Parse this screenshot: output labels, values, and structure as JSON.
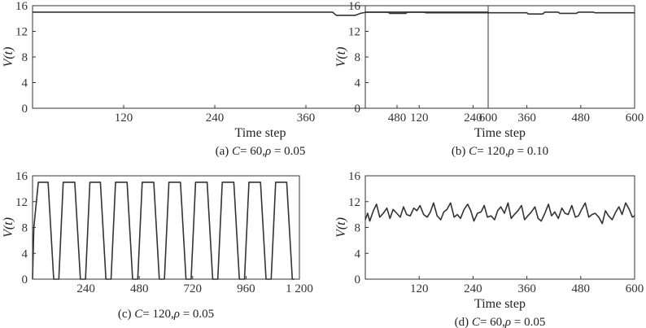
{
  "chart_data": [
    {
      "type": "line",
      "panel": "a",
      "xlabel": "Time step",
      "ylabel": "V(t)",
      "caption": {
        "prefix": "(a) ",
        "c_sym": "C",
        "c_val": "= 60,",
        "rho_sym": "ρ",
        "rho_val": " = 0.05"
      },
      "xlim": [
        0,
        600
      ],
      "ylim": [
        0,
        16
      ],
      "xticks": [
        {
          "v": 120,
          "label": "120"
        },
        {
          "v": 240,
          "label": "240"
        },
        {
          "v": 360,
          "label": "360"
        },
        {
          "v": 480,
          "label": "480"
        },
        {
          "v": 600,
          "label": "600"
        }
      ],
      "yticks": [
        {
          "v": 0,
          "label": "0"
        },
        {
          "v": 4,
          "label": "4"
        },
        {
          "v": 8,
          "label": "8"
        },
        {
          "v": 12,
          "label": "12"
        },
        {
          "v": 16,
          "label": "16"
        }
      ],
      "series": [
        {
          "x": [
            0,
            395,
            400,
            425,
            432,
            440,
            450,
            600
          ],
          "y": [
            15,
            15,
            14.5,
            14.5,
            14.8,
            15,
            15,
            15
          ]
        }
      ]
    },
    {
      "type": "line",
      "panel": "b",
      "xlabel": "Time step",
      "ylabel": "V(t)",
      "caption": {
        "prefix": "(b) ",
        "c_sym": "C",
        "c_val": "= 120,",
        "rho_sym": "ρ",
        "rho_val": " = 0.10"
      },
      "xlim": [
        0,
        600
      ],
      "ylim": [
        0,
        16
      ],
      "xticks": [
        {
          "v": 120,
          "label": "120"
        },
        {
          "v": 240,
          "label": "240"
        },
        {
          "v": 360,
          "label": "360"
        },
        {
          "v": 480,
          "label": "480"
        },
        {
          "v": 600,
          "label": "600"
        }
      ],
      "yticks": [
        {
          "v": 0,
          "label": "0"
        },
        {
          "v": 4,
          "label": "4"
        },
        {
          "v": 8,
          "label": "8"
        },
        {
          "v": 12,
          "label": "12"
        },
        {
          "v": 16,
          "label": "16"
        }
      ],
      "series": [
        {
          "x": [
            0,
            50,
            55,
            90,
            95,
            130,
            135,
            360,
            363,
            395,
            400,
            430,
            433,
            470,
            475,
            508,
            512,
            600
          ],
          "y": [
            15,
            15,
            14.8,
            14.8,
            15,
            15,
            14.9,
            14.9,
            14.7,
            14.7,
            15,
            15,
            14.8,
            14.8,
            15,
            15,
            14.9,
            14.9
          ]
        }
      ]
    },
    {
      "type": "line",
      "panel": "c",
      "xlabel": "",
      "ylabel": "V(t)",
      "caption": {
        "prefix": "(c) ",
        "c_sym": "C",
        "c_val": "= 120,",
        "rho_sym": "ρ",
        "rho_val": " = 0.05"
      },
      "xlim": [
        0,
        1200
      ],
      "ylim": [
        0,
        16
      ],
      "xticks": [
        {
          "v": 240,
          "label": "240"
        },
        {
          "v": 480,
          "label": "480"
        },
        {
          "v": 720,
          "label": "720"
        },
        {
          "v": 960,
          "label": "960"
        },
        {
          "v": 1200,
          "label": "1 200"
        }
      ],
      "yticks": [
        {
          "v": 0,
          "label": "0"
        },
        {
          "v": 4,
          "label": "4"
        },
        {
          "v": 8,
          "label": "8"
        },
        {
          "v": 12,
          "label": "12"
        },
        {
          "v": 16,
          "label": "16"
        }
      ],
      "series": [
        {
          "x": [
            0,
            6,
            26,
            70,
            95,
            118,
            138,
            190,
            215,
            238,
            258,
            305,
            330,
            353,
            373,
            425,
            450,
            473,
            493,
            545,
            570,
            593,
            613,
            665,
            690,
            713,
            733,
            785,
            810,
            833,
            853,
            905,
            930,
            953,
            973,
            1025,
            1050,
            1073,
            1093,
            1143,
            1168,
            1178
          ],
          "y": [
            0,
            8,
            15,
            15,
            0,
            0,
            15,
            15,
            0,
            0,
            15,
            15,
            0,
            0,
            15,
            15,
            0,
            0,
            15,
            15,
            0,
            0,
            15,
            15,
            0,
            0,
            15,
            15,
            0,
            0,
            15,
            15,
            0,
            0,
            15,
            15,
            0,
            0,
            15,
            15,
            0,
            0
          ]
        }
      ]
    },
    {
      "type": "line",
      "panel": "d",
      "xlabel": "Time step",
      "ylabel": "V(t)",
      "caption": {
        "prefix": "(d) ",
        "c_sym": "C",
        "c_val": "= 60,",
        "rho_sym": "ρ",
        "rho_val": " = 0.05"
      },
      "xlim": [
        0,
        600
      ],
      "ylim": [
        0,
        16
      ],
      "xticks": [
        {
          "v": 120,
          "label": "120"
        },
        {
          "v": 240,
          "label": "240"
        },
        {
          "v": 360,
          "label": "360"
        },
        {
          "v": 480,
          "label": "480"
        },
        {
          "v": 600,
          "label": "600"
        }
      ],
      "yticks": [
        {
          "v": 0,
          "label": "0"
        },
        {
          "v": 4,
          "label": "4"
        },
        {
          "v": 8,
          "label": "8"
        },
        {
          "v": 12,
          "label": "12"
        },
        {
          "v": 16,
          "label": "16"
        }
      ],
      "series": [
        {
          "x": [
            0,
            5,
            10,
            18,
            25,
            32,
            40,
            48,
            55,
            62,
            70,
            78,
            85,
            92,
            100,
            108,
            115,
            122,
            130,
            138,
            145,
            152,
            160,
            168,
            175,
            182,
            190,
            198,
            205,
            212,
            220,
            228,
            235,
            242,
            250,
            258,
            265,
            272,
            280,
            288,
            295,
            302,
            310,
            318,
            325,
            332,
            340,
            348,
            355,
            362,
            370,
            378,
            385,
            392,
            400,
            408,
            415,
            422,
            430,
            438,
            445,
            452,
            460,
            468,
            475,
            482,
            490,
            498,
            505,
            512,
            520,
            528,
            535,
            542,
            550,
            558,
            565,
            572,
            580,
            588,
            595,
            600
          ],
          "y": [
            9.2,
            10.2,
            9.0,
            10.6,
            11.6,
            9.6,
            10.2,
            11.0,
            9.4,
            10.8,
            10.2,
            9.6,
            11.2,
            10.0,
            9.8,
            11.0,
            10.6,
            11.4,
            10.0,
            9.6,
            10.4,
            11.8,
            9.8,
            9.2,
            10.4,
            10.8,
            11.8,
            9.6,
            10.0,
            9.4,
            10.8,
            11.6,
            10.6,
            9.0,
            10.2,
            10.4,
            11.4,
            9.6,
            9.8,
            9.2,
            10.6,
            11.2,
            10.2,
            11.8,
            9.4,
            10.0,
            10.6,
            11.4,
            9.2,
            9.8,
            10.4,
            11.2,
            9.4,
            9.0,
            10.2,
            11.6,
            9.8,
            10.4,
            9.4,
            11.0,
            10.2,
            10.0,
            11.4,
            9.6,
            9.8,
            10.8,
            11.8,
            9.6,
            10.0,
            10.2,
            9.6,
            8.6,
            10.6,
            9.8,
            9.2,
            10.4,
            11.2,
            10.0,
            11.8,
            10.8,
            9.6,
            9.8
          ]
        }
      ]
    }
  ]
}
